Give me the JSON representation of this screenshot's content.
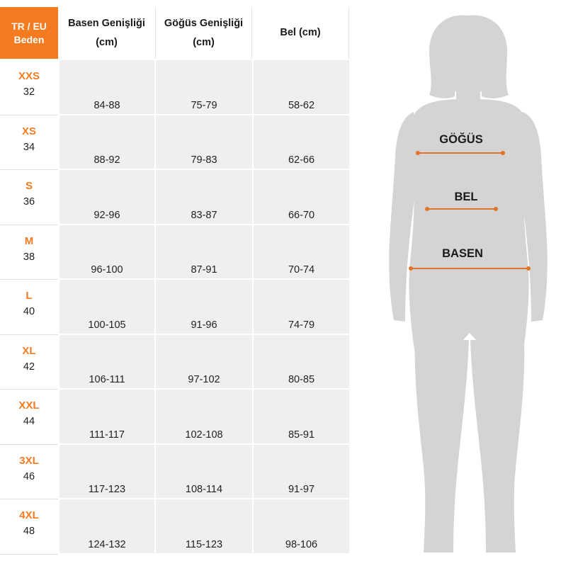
{
  "table": {
    "header": {
      "size_label_line1": "TR / EU",
      "size_label_line2": "Beden",
      "columns": [
        {
          "line1": "Basen Genişliği",
          "line2": "(cm)"
        },
        {
          "line1": "Göğüs Genişliği",
          "line2": "(cm)"
        },
        {
          "line1": "Bel (cm)",
          "line2": ""
        }
      ]
    },
    "rows": [
      {
        "size": "XXS",
        "eu": "32",
        "basen": "84-88",
        "gogus": "75-79",
        "bel": "58-62"
      },
      {
        "size": "XS",
        "eu": "34",
        "basen": "88-92",
        "gogus": "79-83",
        "bel": "62-66"
      },
      {
        "size": "S",
        "eu": "36",
        "basen": "92-96",
        "gogus": "83-87",
        "bel": "66-70"
      },
      {
        "size": "M",
        "eu": "38",
        "basen": "96-100",
        "gogus": "87-91",
        "bel": "70-74"
      },
      {
        "size": "L",
        "eu": "40",
        "basen": "100-105",
        "gogus": "91-96",
        "bel": "74-79"
      },
      {
        "size": "XL",
        "eu": "42",
        "basen": "106-111",
        "gogus": "97-102",
        "bel": "80-85"
      },
      {
        "size": "XXL",
        "eu": "44",
        "basen": "111-117",
        "gogus": "102-108",
        "bel": "85-91"
      },
      {
        "size": "3XL",
        "eu": "46",
        "basen": "117-123",
        "gogus": "108-114",
        "bel": "91-97"
      },
      {
        "size": "4XL",
        "eu": "48",
        "basen": "124-132",
        "gogus": "115-123",
        "bel": "98-106"
      }
    ]
  },
  "figure": {
    "chest_label": "GÖĞÜS",
    "waist_label": "BEL",
    "hip_label": "BASEN",
    "silhouette_color": "#d4d4d4",
    "measure_line_color": "#e2742a"
  },
  "colors": {
    "accent": "#f47b20",
    "cell_bg": "#efefef"
  }
}
